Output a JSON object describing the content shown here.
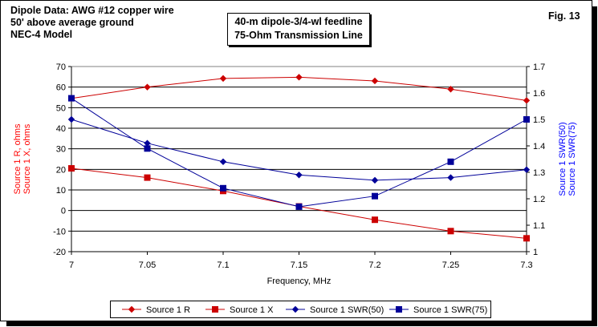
{
  "header": {
    "lines": [
      "Dipole Data:  AWG #12 copper wire",
      "50' above average ground",
      "NEC-4 Model"
    ],
    "box_lines": [
      "40-m dipole-3/4-wl feedline",
      "75-Ohm Transmission Line"
    ],
    "fig_label": "Fig. 13"
  },
  "chart_data": {
    "type": "line",
    "xlabel": "Frequency, MHz",
    "x": [
      7,
      7.05,
      7.1,
      7.15,
      7.2,
      7.25,
      7.3
    ],
    "x_ticks": [
      "7",
      "7.05",
      "7.1",
      "7.15",
      "7.2",
      "7.25",
      "7.3"
    ],
    "y_left": {
      "labels": [
        "Source 1 R, ohms",
        "Source 1 X, ohms"
      ],
      "lim": [
        -20,
        70
      ],
      "ticks": [
        "-20",
        "-10",
        "0",
        "10",
        "20",
        "30",
        "40",
        "50",
        "60",
        "70"
      ],
      "color": "#ff0000"
    },
    "y_right": {
      "labels": [
        "Source 1 SWR(50)",
        "Source 1 SWR(75)"
      ],
      "lim": [
        1,
        1.7
      ],
      "ticks": [
        "1",
        "1.1",
        "1.2",
        "1.3",
        "1.4",
        "1.5",
        "1.6",
        "1.7"
      ],
      "color": "#0000ff"
    },
    "series": [
      {
        "name": "Source 1 R",
        "axis": "left",
        "color": "#cc0000",
        "marker": "diamond",
        "values": [
          54.5,
          60.0,
          64.2,
          64.8,
          63.0,
          59.0,
          53.5
        ]
      },
      {
        "name": "Source 1 X",
        "axis": "left",
        "color": "#cc0000",
        "marker": "square",
        "values": [
          20.5,
          16.0,
          9.5,
          2.0,
          -4.5,
          -10.0,
          -13.5
        ]
      },
      {
        "name": "Source 1 SWR(50)",
        "axis": "right",
        "color": "#000099",
        "marker": "diamond",
        "values": [
          1.5,
          1.41,
          1.34,
          1.29,
          1.27,
          1.28,
          1.31
        ]
      },
      {
        "name": "Source 1 SWR(75)",
        "axis": "right",
        "color": "#000099",
        "marker": "square",
        "values": [
          1.58,
          1.39,
          1.24,
          1.17,
          1.21,
          1.34,
          1.5
        ]
      }
    ],
    "grid": true,
    "legend_position": "bottom"
  }
}
